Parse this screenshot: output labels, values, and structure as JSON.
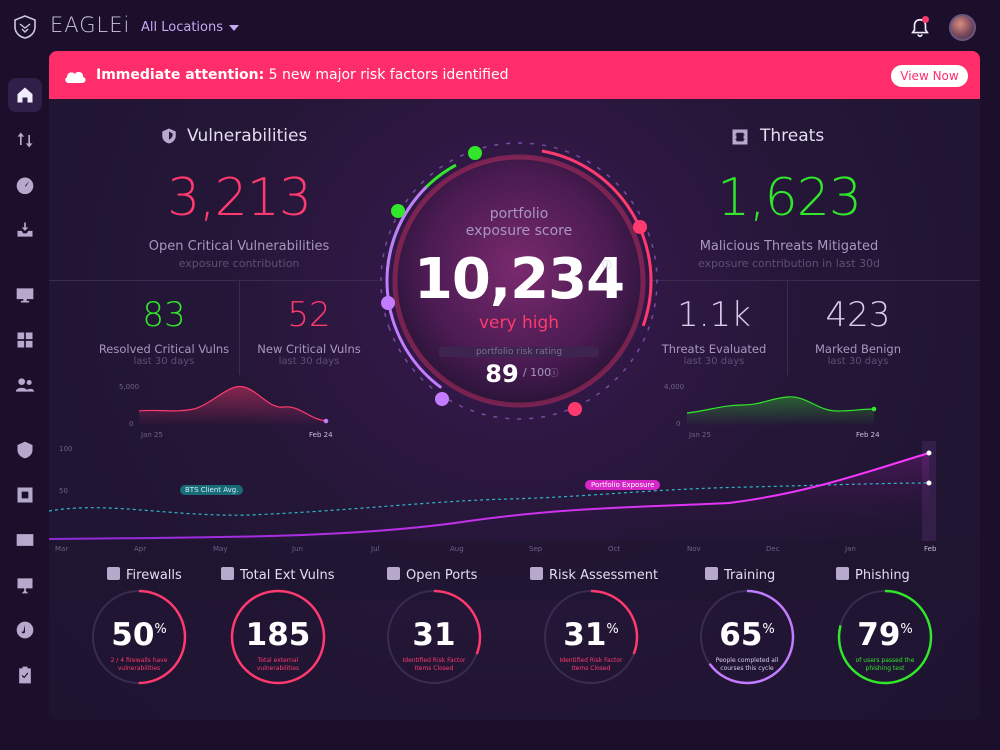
{
  "app": {
    "brand": "EAGLEi",
    "location": "All Locations"
  },
  "alert": {
    "prefix": "Immediate attention:",
    "message": "5 new major risk factors identified",
    "button": "View Now"
  },
  "vulnerabilities": {
    "title": "Vulnerabilities",
    "value": "3,213",
    "label": "Open Critical Vulnerabilities",
    "sub": "exposure contribution",
    "resolved": {
      "value": "83",
      "label": "Resolved Critical Vulns",
      "sub": "last 30 days"
    },
    "new": {
      "value": "52",
      "label": "New Critical Vulns",
      "sub": "last 30 days"
    },
    "spark": {
      "ymax": "5,000",
      "ymin": "0",
      "start": "Jan 25",
      "end": "Feb 24"
    }
  },
  "threats": {
    "title": "Threats",
    "value": "1,623",
    "label": "Malicious Threats Mitigated",
    "sub": "exposure contribution in last 30d",
    "evaluated": {
      "value": "1.1k",
      "label": "Threats Evaluated",
      "sub": "last 30 days"
    },
    "benign": {
      "value": "423",
      "label": "Marked Benign",
      "sub": "last 30 days"
    },
    "spark": {
      "ymax": "4,000",
      "ymin": "0",
      "start": "Jan 25",
      "end": "Feb 24"
    }
  },
  "score": {
    "label1": "portfolio",
    "label2": "exposure score",
    "value": "10,234",
    "severity": "very high",
    "rating_label": "portfolio risk rating",
    "rating": "89",
    "rating_max": "/ 100"
  },
  "trend": {
    "y_hi": "100",
    "y_lo": "50",
    "bts_label": "BTS Client Avg.",
    "portfolio_label": "Portfolio Exposure",
    "months": [
      "Mar",
      "Apr",
      "May",
      "Jun",
      "Jul",
      "Aug",
      "Sep",
      "Oct",
      "Nov",
      "Dec",
      "Jan",
      "Feb"
    ]
  },
  "kpis": [
    {
      "title": "Firewalls",
      "value": "50",
      "suffix": "%",
      "text": "2 / 4 firewalls have vulnerabilities",
      "color": "#ff3a6e",
      "fraction": 0.5
    },
    {
      "title": "Total Ext Vulns",
      "value": "185",
      "suffix": "",
      "text": "Total external vulnerabilities",
      "color": "#ff3a6e",
      "fraction": 1.0
    },
    {
      "title": "Open Ports",
      "value": "31",
      "suffix": "",
      "text": "Identified Risk Factor Items Closed",
      "color": "#ff3a6e",
      "fraction": 0.31
    },
    {
      "title": "Risk Assessment",
      "value": "31",
      "suffix": "%",
      "text": "Identified Risk Factor Items Closed",
      "color": "#ff3a6e",
      "fraction": 0.31
    },
    {
      "title": "Training",
      "value": "65",
      "suffix": "%",
      "text": "People completed all courses this cycle",
      "color": "#c27cff",
      "fraction": 0.65
    },
    {
      "title": "Phishing",
      "value": "79",
      "suffix": "%",
      "text": "of users passed the phishing test",
      "color": "#31e62b",
      "fraction": 0.79
    }
  ],
  "colors": {
    "red": "#ff3a6e",
    "green": "#31e62b",
    "purple": "#c27cff",
    "cyan": "#2fb7c9"
  }
}
